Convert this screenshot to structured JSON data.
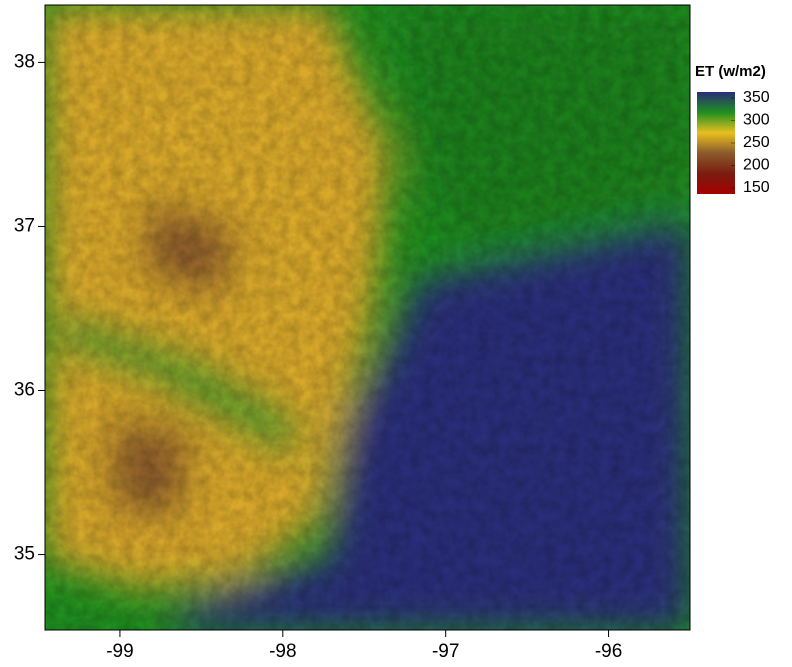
{
  "chart_data": {
    "type": "heatmap",
    "xlim": [
      -99.46,
      -95.5
    ],
    "ylim": [
      34.54,
      38.35
    ],
    "xticks": [
      -99,
      -98,
      -97,
      -96
    ],
    "yticks": [
      35,
      36,
      37,
      38
    ],
    "colorbar": {
      "title": "ET (w/m2)",
      "clim": [
        150,
        350
      ],
      "ticks": [
        150,
        200,
        250,
        300,
        350
      ],
      "colors": [
        "#a50000",
        "#7a1c10",
        "#8b5a2b",
        "#e8c020",
        "#1f8f1f",
        "#2a2d7a"
      ]
    }
  }
}
